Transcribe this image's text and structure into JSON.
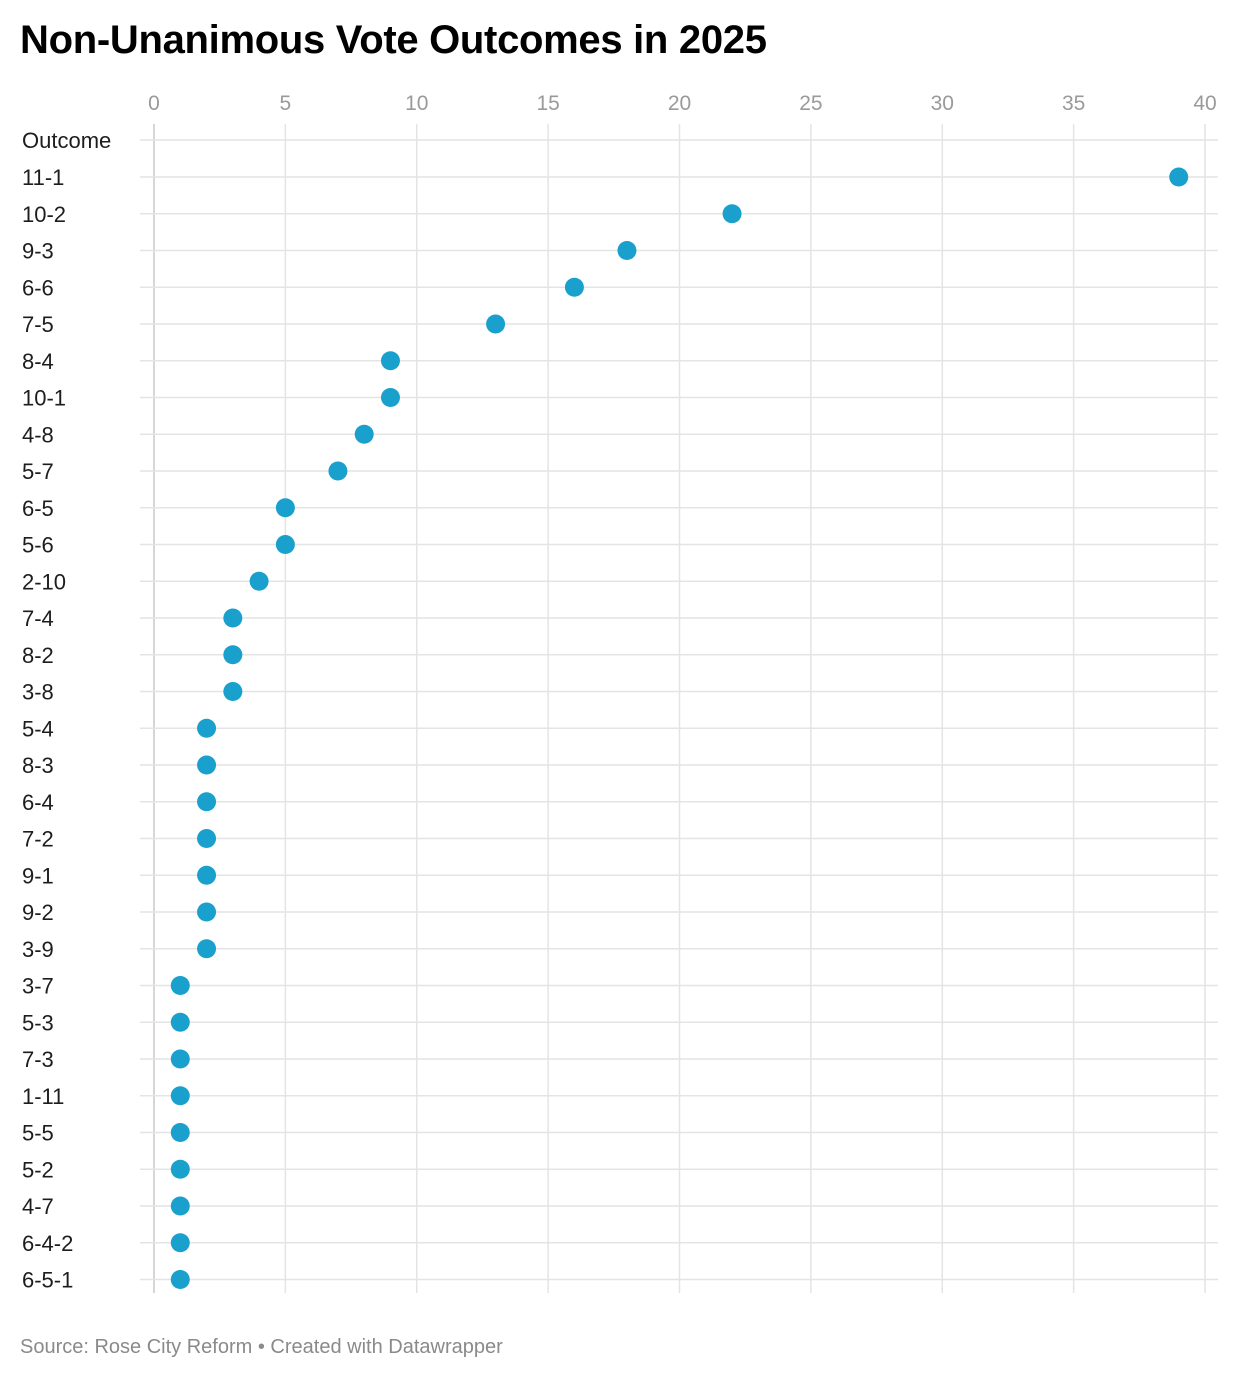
{
  "title": "Non-Unanimous Vote Outcomes in 2025",
  "footer": {
    "source": "Source: Rose City Reform",
    "separator": " • ",
    "credit": "Created with Datawrapper"
  },
  "colors": {
    "dot": "#1aa0cc",
    "grid": "#e4e4e4",
    "tick_label": "#9a9a9a",
    "row_label": "#1d1d1d"
  },
  "chart_data": {
    "type": "scatter",
    "title": "Non-Unanimous Vote Outcomes in 2025",
    "y_header": "Outcome",
    "xlim": [
      0,
      40
    ],
    "x_ticks": [
      0,
      5,
      10,
      15,
      20,
      25,
      30,
      35,
      40
    ],
    "grid": true,
    "categories": [
      "11-1",
      "10-2",
      "9-3",
      "6-6",
      "7-5",
      "8-4",
      "10-1",
      "4-8",
      "5-7",
      "6-5",
      "5-6",
      "2-10",
      "7-4",
      "8-2",
      "3-8",
      "5-4",
      "8-3",
      "6-4",
      "7-2",
      "9-1",
      "9-2",
      "3-9",
      "3-7",
      "5-3",
      "7-3",
      "1-11",
      "5-5",
      "5-2",
      "4-7",
      "6-4-2",
      "6-5-1"
    ],
    "values": [
      39,
      22,
      18,
      16,
      13,
      9,
      9,
      8,
      7,
      5,
      5,
      4,
      3,
      3,
      3,
      2,
      2,
      2,
      2,
      2,
      2,
      2,
      1,
      1,
      1,
      1,
      1,
      1,
      1,
      1,
      1
    ]
  }
}
